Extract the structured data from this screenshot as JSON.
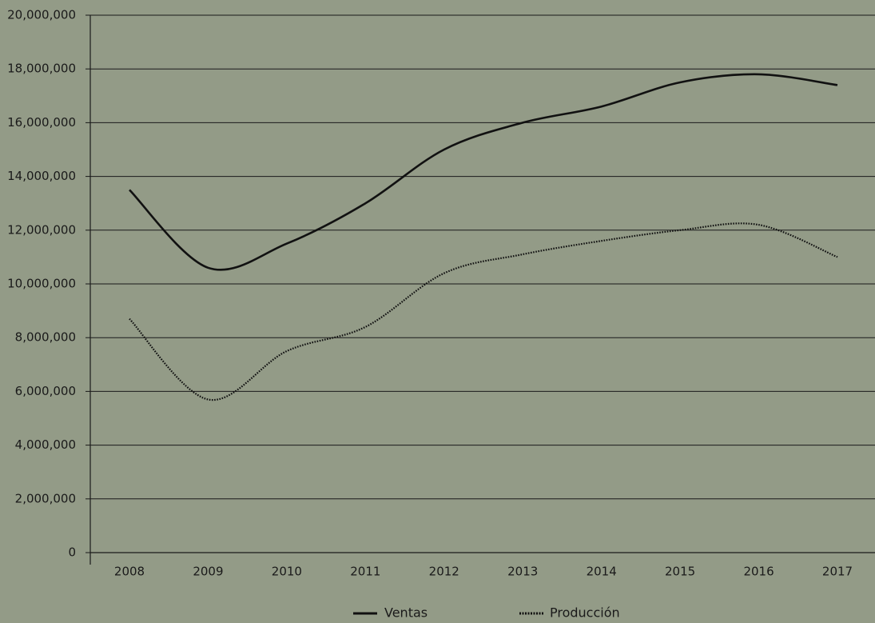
{
  "chart_data": {
    "type": "line",
    "title": "",
    "xlabel": "",
    "ylabel": "",
    "categories": [
      "2008",
      "2009",
      "2010",
      "2011",
      "2012",
      "2013",
      "2014",
      "2015",
      "2016",
      "2017"
    ],
    "ylim": [
      0,
      20000000
    ],
    "yticks": [
      0,
      2000000,
      4000000,
      6000000,
      8000000,
      10000000,
      12000000,
      14000000,
      16000000,
      18000000,
      20000000
    ],
    "ytick_labels": [
      "0",
      "2,000,000",
      "4,000,000",
      "6,000,000",
      "8,000,000",
      "10,000,000",
      "12,000,000",
      "14,000,000",
      "16,000,000",
      "18,000,000",
      "20,000,000"
    ],
    "grid": true,
    "legend_position": "bottom",
    "series": [
      {
        "name": "Ventas",
        "style": "solid",
        "color": "#111111",
        "values": [
          13500000,
          10600000,
          11500000,
          13000000,
          15000000,
          16000000,
          16600000,
          17500000,
          17800000,
          17400000
        ]
      },
      {
        "name": "Producción",
        "style": "dotted",
        "color": "#111111",
        "values": [
          8700000,
          5700000,
          7500000,
          8400000,
          10400000,
          11100000,
          11600000,
          12000000,
          12200000,
          11000000
        ]
      }
    ]
  }
}
